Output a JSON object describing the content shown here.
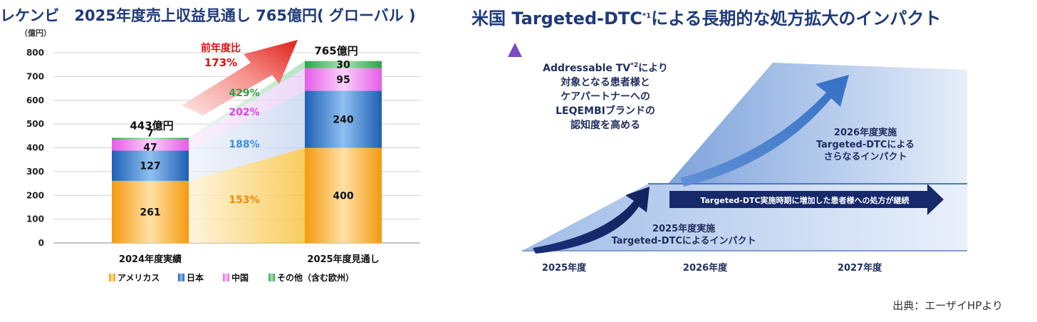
{
  "left_title": "レケンビ　2025年度売上収益見通し 765億円( グローバル )",
  "right_title": {
    "before": "米国 Targeted-DTC",
    "sup": "*1",
    "after": "による長期的な処方拡大のインパクト"
  },
  "chart_data": {
    "type": "bar",
    "stacked": true,
    "unit_label": "（億円）",
    "ylim": [
      0,
      800
    ],
    "yticks": [
      "0",
      "100",
      "200",
      "300",
      "400",
      "500",
      "600",
      "700",
      "800"
    ],
    "categories": [
      "2024年度実績",
      "2025年度見通し"
    ],
    "totals": [
      "443億円",
      "765億円"
    ],
    "series": [
      {
        "name": "アメリカス",
        "color": "#f5a623",
        "values": [
          261,
          400
        ],
        "growth": "153%",
        "growth_color": "#f08a00"
      },
      {
        "name": "日本",
        "color": "#2a6fc4",
        "values": [
          127,
          240
        ],
        "growth": "188%",
        "growth_color": "#3a8ee0"
      },
      {
        "name": "中国",
        "color": "#ee6ef0",
        "values": [
          47,
          95
        ],
        "growth": "202%",
        "growth_color": "#e040e0"
      },
      {
        "name": "その他（含む欧州）",
        "color": "#3cb35a",
        "values": [
          7,
          30
        ],
        "growth": "429%",
        "growth_color": "#2f9e48"
      }
    ],
    "yoy_label": [
      "前年度比",
      "173%"
    ],
    "grid": true
  },
  "diagram": {
    "addressable_text": [
      "Addressable TV*2により",
      "対象となる患者様と",
      "ケアパートナーへの",
      "LEQEMBIブランドの",
      "認知度を高める"
    ],
    "impact_2026": [
      "2026年度実施",
      "Targeted-DTCによる",
      "さらなるインパクト"
    ],
    "impact_2025": [
      "2025年度実施",
      "Targeted-DTCによるインパクト"
    ],
    "continuing_arrow": "Targeted-DTC実施時期に増加した患者様への処方が継続",
    "years": [
      "2025年度",
      "2026年度",
      "2027年度"
    ]
  },
  "source": "出典：エーザイHPより"
}
